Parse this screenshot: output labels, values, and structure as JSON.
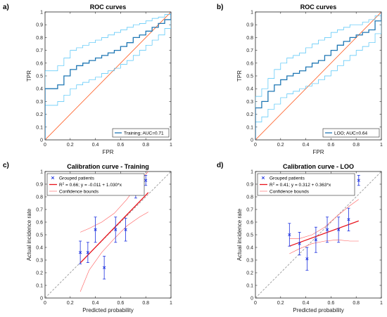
{
  "chart_data": [
    {
      "type": "line",
      "panel": "a)",
      "title": "ROC curves",
      "xlabel": "FPR",
      "ylabel": "TPR",
      "xlim": [
        0,
        1
      ],
      "ylim": [
        0,
        1
      ],
      "xticks": [
        "0",
        "0.2",
        "0.4",
        "0.6",
        "0.8",
        "1"
      ],
      "yticks": [
        "0",
        "0.1",
        "0.2",
        "0.3",
        "0.4",
        "0.5",
        "0.6",
        "0.7",
        "0.8",
        "0.9",
        "1"
      ],
      "legend": {
        "placement": "bottom-right",
        "entries": [
          "Training; AUC=0.71"
        ]
      },
      "series": [
        {
          "name": "Training; AUC=0.71",
          "color": "#1f77b4",
          "x": [
            0,
            0,
            0.05,
            0.1,
            0.15,
            0.2,
            0.25,
            0.3,
            0.35,
            0.4,
            0.45,
            0.5,
            0.55,
            0.6,
            0.65,
            0.7,
            0.75,
            0.8,
            0.85,
            0.9,
            0.95,
            1
          ],
          "y": [
            0,
            0.4,
            0.4,
            0.43,
            0.5,
            0.55,
            0.58,
            0.6,
            0.62,
            0.64,
            0.66,
            0.68,
            0.7,
            0.73,
            0.76,
            0.8,
            0.82,
            0.85,
            0.88,
            0.91,
            0.94,
            1
          ]
        },
        {
          "color": "#4fc3f7",
          "x": [
            0,
            0,
            0.05,
            0.1,
            0.15,
            0.2,
            0.25,
            0.3,
            0.35,
            0.4,
            0.45,
            0.5,
            0.55,
            0.6,
            0.65,
            0.7,
            0.75,
            0.8,
            0.85,
            0.9,
            0.95,
            1
          ],
          "y": [
            0,
            0.54,
            0.54,
            0.58,
            0.64,
            0.7,
            0.72,
            0.74,
            0.76,
            0.78,
            0.8,
            0.82,
            0.84,
            0.86,
            0.88,
            0.9,
            0.91,
            0.93,
            0.95,
            0.96,
            0.98,
            1
          ]
        },
        {
          "color": "#4fc3f7",
          "x": [
            0,
            0,
            0.05,
            0.1,
            0.15,
            0.2,
            0.25,
            0.3,
            0.35,
            0.4,
            0.45,
            0.5,
            0.55,
            0.6,
            0.65,
            0.7,
            0.75,
            0.8,
            0.85,
            0.9,
            0.95,
            1
          ],
          "y": [
            0,
            0.27,
            0.27,
            0.3,
            0.35,
            0.4,
            0.43,
            0.45,
            0.47,
            0.49,
            0.52,
            0.54,
            0.56,
            0.59,
            0.62,
            0.66,
            0.7,
            0.74,
            0.78,
            0.82,
            0.87,
            1
          ]
        },
        {
          "color": "#ff5a1f",
          "x": [
            0,
            1
          ],
          "y": [
            0,
            1
          ]
        }
      ]
    },
    {
      "type": "line",
      "panel": "b)",
      "title": "ROC curves",
      "xlabel": "FPR",
      "ylabel": "TPR",
      "xlim": [
        0,
        1
      ],
      "ylim": [
        0,
        1
      ],
      "xticks": [
        "0",
        "0.2",
        "0.4",
        "0.6",
        "0.8",
        "1"
      ],
      "yticks": [
        "0",
        "0.1",
        "0.2",
        "0.3",
        "0.4",
        "0.5",
        "0.6",
        "0.7",
        "0.8",
        "0.9",
        "1"
      ],
      "legend": {
        "placement": "bottom-right",
        "entries": [
          "LOO; AUC=0.64"
        ]
      },
      "series": [
        {
          "name": "LOO; AUC=0.64",
          "color": "#1f77b4",
          "x": [
            0,
            0,
            0.05,
            0.1,
            0.15,
            0.2,
            0.25,
            0.3,
            0.35,
            0.4,
            0.45,
            0.5,
            0.55,
            0.6,
            0.65,
            0.7,
            0.75,
            0.8,
            0.85,
            0.9,
            0.95,
            1
          ],
          "y": [
            0,
            0.25,
            0.3,
            0.38,
            0.43,
            0.47,
            0.5,
            0.52,
            0.54,
            0.57,
            0.6,
            0.62,
            0.66,
            0.7,
            0.74,
            0.77,
            0.8,
            0.82,
            0.84,
            0.86,
            0.93,
            1
          ]
        },
        {
          "color": "#4fc3f7",
          "x": [
            0,
            0,
            0.05,
            0.1,
            0.15,
            0.2,
            0.25,
            0.3,
            0.35,
            0.4,
            0.45,
            0.5,
            0.55,
            0.6,
            0.65,
            0.7,
            0.75,
            0.8,
            0.85,
            0.9,
            0.95,
            1
          ],
          "y": [
            0,
            0.34,
            0.4,
            0.48,
            0.55,
            0.6,
            0.64,
            0.66,
            0.68,
            0.72,
            0.75,
            0.78,
            0.8,
            0.84,
            0.86,
            0.88,
            0.9,
            0.9,
            0.92,
            0.94,
            0.97,
            1
          ]
        },
        {
          "color": "#4fc3f7",
          "x": [
            0,
            0,
            0.05,
            0.1,
            0.15,
            0.2,
            0.25,
            0.3,
            0.35,
            0.4,
            0.45,
            0.5,
            0.55,
            0.6,
            0.65,
            0.7,
            0.75,
            0.8,
            0.85,
            0.9,
            0.95,
            1
          ],
          "y": [
            0,
            0.14,
            0.18,
            0.24,
            0.28,
            0.33,
            0.36,
            0.38,
            0.4,
            0.42,
            0.44,
            0.47,
            0.5,
            0.54,
            0.58,
            0.62,
            0.66,
            0.7,
            0.73,
            0.76,
            0.83,
            1
          ]
        },
        {
          "color": "#ff5a1f",
          "x": [
            0,
            1
          ],
          "y": [
            0,
            1
          ]
        }
      ]
    },
    {
      "type": "scatter",
      "panel": "c)",
      "title": "Calibration curve - Training",
      "xlabel": "Predicted probability",
      "ylabel": "Actual incidence rate",
      "xlim": [
        0,
        1
      ],
      "ylim": [
        0,
        1
      ],
      "xticks": [
        "0",
        "0.2",
        "0.4",
        "0.6",
        "0.8",
        "1"
      ],
      "yticks": [
        "0",
        "0.1",
        "0.2",
        "0.3",
        "0.4",
        "0.5",
        "0.6",
        "0.7",
        "0.8",
        "0.9",
        "1"
      ],
      "legend": {
        "placement": "top-left",
        "entries": [
          {
            "sym": "x",
            "pre": "Grouped patients"
          },
          {
            "sym": "line",
            "pre": "R",
            "sup": "2",
            "post": " = 0.66; y = -0.011 + 1.030*x"
          },
          {
            "sym": "thin",
            "pre": "Confidence bounds"
          }
        ]
      },
      "points": {
        "x": [
          0.28,
          0.34,
          0.4,
          0.47,
          0.56,
          0.64,
          0.72,
          0.8
        ],
        "y": [
          0.36,
          0.36,
          0.54,
          0.24,
          0.54,
          0.54,
          0.85,
          0.93
        ],
        "err": [
          0.09,
          0.08,
          0.1,
          0.09,
          0.1,
          0.09,
          0.06,
          0.04
        ]
      },
      "fit": {
        "intercept": -0.011,
        "slope": 1.03,
        "x_range": [
          0.28,
          0.82
        ]
      },
      "bounds": {
        "upper": {
          "x": [
            0.28,
            0.35,
            0.45,
            0.55,
            0.65,
            0.75,
            0.82
          ],
          "y": [
            0.52,
            0.55,
            0.6,
            0.67,
            0.78,
            0.92,
            1.0
          ]
        },
        "lower": {
          "x": [
            0.28,
            0.35,
            0.45,
            0.55,
            0.65,
            0.75,
            0.82
          ],
          "y": [
            0.05,
            0.22,
            0.36,
            0.47,
            0.57,
            0.64,
            0.68
          ]
        }
      }
    },
    {
      "type": "scatter",
      "panel": "d)",
      "title": "Calibration curve - LOO",
      "xlabel": "Predicted probability",
      "ylabel": "Actual incidence rate",
      "xlim": [
        0,
        1
      ],
      "ylim": [
        0,
        1
      ],
      "xticks": [
        "0",
        "0.2",
        "0.4",
        "0.6",
        "0.8",
        "1"
      ],
      "yticks": [
        "0",
        "0.1",
        "0.2",
        "0.3",
        "0.4",
        "0.5",
        "0.6",
        "0.7",
        "0.8",
        "0.9",
        "1"
      ],
      "legend": {
        "placement": "top-left",
        "entries": [
          {
            "sym": "x",
            "pre": "Grouped patients"
          },
          {
            "sym": "line",
            "pre": "R",
            "sup": "2",
            "post": " = 0.41; y = 0.312 + 0.363*x"
          },
          {
            "sym": "thin",
            "pre": "Confidence bounds"
          }
        ]
      },
      "points": {
        "x": [
          0.27,
          0.35,
          0.41,
          0.48,
          0.57,
          0.66,
          0.74,
          0.82
        ],
        "y": [
          0.5,
          0.43,
          0.31,
          0.46,
          0.54,
          0.54,
          0.62,
          0.93
        ],
        "err": [
          0.09,
          0.09,
          0.09,
          0.1,
          0.1,
          0.1,
          0.09,
          0.04
        ]
      },
      "fit": {
        "intercept": 0.312,
        "slope": 0.363,
        "x_range": [
          0.27,
          0.82
        ]
      },
      "bounds": {
        "upper": {
          "x": [
            0.27,
            0.35,
            0.45,
            0.55,
            0.65,
            0.75,
            0.82
          ],
          "y": [
            0.47,
            0.47,
            0.5,
            0.56,
            0.65,
            0.73,
            0.78
          ]
        },
        "lower": {
          "x": [
            0.27,
            0.35,
            0.45,
            0.55,
            0.65,
            0.75,
            0.82
          ],
          "y": [
            0.35,
            0.39,
            0.43,
            0.45,
            0.46,
            0.45,
            0.45
          ]
        }
      }
    }
  ]
}
